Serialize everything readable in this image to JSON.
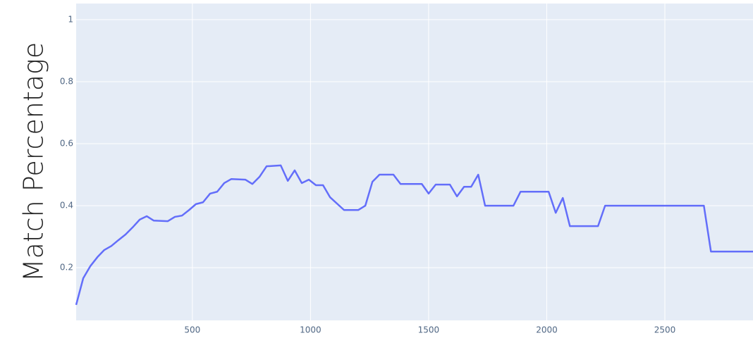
{
  "chart_data": {
    "type": "line",
    "y_label": "Match Percentage",
    "x": [
      8,
      38,
      68,
      98,
      127,
      157,
      187,
      217,
      247,
      277,
      307,
      336,
      396,
      426,
      456,
      486,
      515,
      545,
      575,
      605,
      635,
      665,
      724,
      754,
      784,
      814,
      874,
      904,
      933,
      963,
      993,
      1023,
      1053,
      1083,
      1142,
      1202,
      1232,
      1262,
      1292,
      1351,
      1381,
      1471,
      1500,
      1530,
      1590,
      1620,
      1650,
      1680,
      1710,
      1739,
      1859,
      1889,
      2008,
      2038,
      2068,
      2098,
      2217,
      2247,
      2665,
      2695,
      2873
    ],
    "series": [
      {
        "name": "Match Percentage",
        "color": "#636efa",
        "values": [
          0.08,
          0.166,
          0.205,
          0.234,
          0.257,
          0.27,
          0.289,
          0.307,
          0.33,
          0.355,
          0.366,
          0.352,
          0.35,
          0.364,
          0.368,
          0.386,
          0.405,
          0.411,
          0.439,
          0.445,
          0.473,
          0.486,
          0.484,
          0.47,
          0.493,
          0.527,
          0.53,
          0.48,
          0.514,
          0.473,
          0.484,
          0.466,
          0.466,
          0.427,
          0.386,
          0.386,
          0.4,
          0.477,
          0.5,
          0.5,
          0.47,
          0.47,
          0.439,
          0.468,
          0.468,
          0.43,
          0.461,
          0.461,
          0.5,
          0.4,
          0.4,
          0.445,
          0.445,
          0.377,
          0.425,
          0.334,
          0.334,
          0.4,
          0.4,
          0.252,
          0.252
        ]
      }
    ],
    "xlim": [
      8,
      2873
    ],
    "xticks": [
      500,
      1000,
      1500,
      2000,
      2500
    ],
    "ylim": [
      0.03,
      1.052
    ],
    "yticks": [
      0.2,
      0.4,
      0.6,
      0.8,
      1
    ],
    "grid": true
  }
}
